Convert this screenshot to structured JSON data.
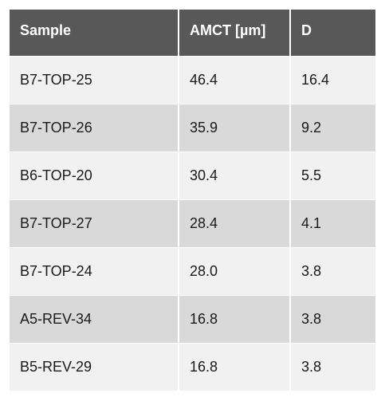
{
  "table": {
    "headers": [
      "Sample",
      "AMCT [µm]",
      "D"
    ],
    "rows": [
      [
        "B7-TOP-25",
        "46.4",
        "16.4"
      ],
      [
        "B7-TOP-26",
        "35.9",
        "9.2"
      ],
      [
        "B6-TOP-20",
        "30.4",
        "5.5"
      ],
      [
        "B7-TOP-27",
        "28.4",
        "4.1"
      ],
      [
        "B7-TOP-24",
        "28.0",
        "3.8"
      ],
      [
        "A5-REV-34",
        "16.8",
        "3.8"
      ],
      [
        "B5-REV-29",
        "16.8",
        "3.8"
      ]
    ]
  }
}
